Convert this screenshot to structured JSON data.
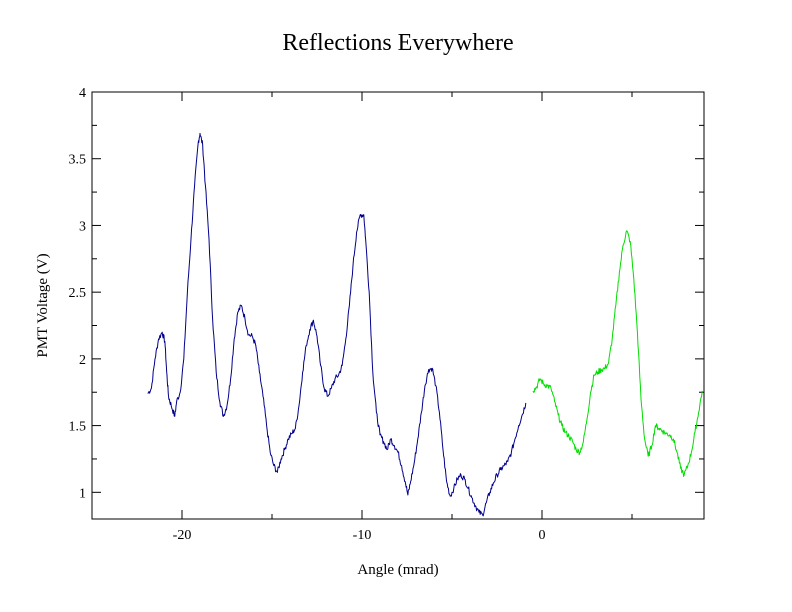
{
  "chart_data": {
    "type": "line",
    "title": "Reflections Everywhere",
    "xlabel": "Angle (mrad)",
    "ylabel": "PMT Voltage (V)",
    "xlim": [
      -25,
      9
    ],
    "ylim": [
      0.8,
      4
    ],
    "grid": false,
    "x_ticks": [
      -20,
      -10,
      0
    ],
    "x_tick_labels": [
      "-20",
      "-10",
      "0"
    ],
    "y_ticks": [
      1,
      1.5,
      2,
      2.5,
      3,
      3.5,
      4
    ],
    "y_tick_labels": [
      "1",
      "1.5",
      "2",
      "2.5",
      "3",
      "3.5",
      "4"
    ],
    "series": [
      {
        "color": "#00008b",
        "points": [
          [
            -21.9,
            1.74
          ],
          [
            -21.7,
            1.78
          ],
          [
            -21.5,
            2.0
          ],
          [
            -21.3,
            2.15
          ],
          [
            -21.1,
            2.2
          ],
          [
            -20.95,
            2.13
          ],
          [
            -20.85,
            1.9
          ],
          [
            -20.75,
            1.72
          ],
          [
            -20.6,
            1.65
          ],
          [
            -20.4,
            1.57
          ],
          [
            -20.3,
            1.68
          ],
          [
            -20.1,
            1.75
          ],
          [
            -19.9,
            2.0
          ],
          [
            -19.7,
            2.5
          ],
          [
            -19.5,
            2.9
          ],
          [
            -19.3,
            3.3
          ],
          [
            -19.1,
            3.62
          ],
          [
            -19.0,
            3.69
          ],
          [
            -18.85,
            3.6
          ],
          [
            -18.7,
            3.3
          ],
          [
            -18.5,
            2.9
          ],
          [
            -18.3,
            2.3
          ],
          [
            -18.1,
            1.9
          ],
          [
            -17.9,
            1.68
          ],
          [
            -17.7,
            1.57
          ],
          [
            -17.5,
            1.65
          ],
          [
            -17.3,
            1.85
          ],
          [
            -17.1,
            2.15
          ],
          [
            -16.9,
            2.35
          ],
          [
            -16.7,
            2.4
          ],
          [
            -16.5,
            2.3
          ],
          [
            -16.3,
            2.18
          ],
          [
            -16.1,
            2.17
          ],
          [
            -15.9,
            2.1
          ],
          [
            -15.7,
            1.9
          ],
          [
            -15.5,
            1.72
          ],
          [
            -15.3,
            1.5
          ],
          [
            -15.1,
            1.3
          ],
          [
            -14.9,
            1.2
          ],
          [
            -14.7,
            1.15
          ],
          [
            -14.5,
            1.25
          ],
          [
            -14.3,
            1.32
          ],
          [
            -14.1,
            1.4
          ],
          [
            -13.9,
            1.44
          ],
          [
            -13.7,
            1.48
          ],
          [
            -13.5,
            1.65
          ],
          [
            -13.3,
            1.9
          ],
          [
            -13.1,
            2.1
          ],
          [
            -12.9,
            2.22
          ],
          [
            -12.7,
            2.29
          ],
          [
            -12.5,
            2.17
          ],
          [
            -12.3,
            1.95
          ],
          [
            -12.1,
            1.78
          ],
          [
            -11.9,
            1.72
          ],
          [
            -11.7,
            1.78
          ],
          [
            -11.5,
            1.85
          ],
          [
            -11.3,
            1.88
          ],
          [
            -11.1,
            1.95
          ],
          [
            -10.9,
            2.15
          ],
          [
            -10.7,
            2.4
          ],
          [
            -10.5,
            2.7
          ],
          [
            -10.3,
            2.95
          ],
          [
            -10.1,
            3.08
          ],
          [
            -9.9,
            3.08
          ],
          [
            -9.8,
            2.9
          ],
          [
            -9.6,
            2.5
          ],
          [
            -9.4,
            1.9
          ],
          [
            -9.2,
            1.6
          ],
          [
            -9.0,
            1.43
          ],
          [
            -8.8,
            1.38
          ],
          [
            -8.6,
            1.32
          ],
          [
            -8.4,
            1.4
          ],
          [
            -8.2,
            1.35
          ],
          [
            -8.0,
            1.3
          ],
          [
            -7.8,
            1.2
          ],
          [
            -7.6,
            1.08
          ],
          [
            -7.45,
            0.98
          ],
          [
            -7.3,
            1.08
          ],
          [
            -7.1,
            1.22
          ],
          [
            -6.9,
            1.4
          ],
          [
            -6.7,
            1.6
          ],
          [
            -6.5,
            1.8
          ],
          [
            -6.3,
            1.92
          ],
          [
            -6.1,
            1.93
          ],
          [
            -5.9,
            1.8
          ],
          [
            -5.7,
            1.6
          ],
          [
            -5.5,
            1.32
          ],
          [
            -5.3,
            1.08
          ],
          [
            -5.1,
            0.97
          ],
          [
            -4.9,
            1.03
          ],
          [
            -4.7,
            1.1
          ],
          [
            -4.5,
            1.13
          ],
          [
            -4.3,
            1.1
          ],
          [
            -4.1,
            1.03
          ],
          [
            -3.9,
            0.96
          ],
          [
            -3.7,
            0.9
          ],
          [
            -3.5,
            0.85
          ],
          [
            -3.3,
            0.83
          ],
          [
            -3.1,
            0.92
          ],
          [
            -2.9,
            1.0
          ],
          [
            -2.7,
            1.07
          ],
          [
            -2.5,
            1.13
          ],
          [
            -2.3,
            1.17
          ],
          [
            -2.1,
            1.2
          ],
          [
            -1.9,
            1.23
          ],
          [
            -1.7,
            1.3
          ],
          [
            -1.5,
            1.4
          ],
          [
            -1.3,
            1.5
          ],
          [
            -1.1,
            1.58
          ],
          [
            -0.9,
            1.67
          ]
        ]
      },
      {
        "color": "#00dd00",
        "points": [
          [
            -0.5,
            1.76
          ],
          [
            -0.3,
            1.79
          ],
          [
            -0.1,
            1.85
          ],
          [
            0.1,
            1.81
          ],
          [
            0.3,
            1.8
          ],
          [
            0.5,
            1.78
          ],
          [
            0.7,
            1.68
          ],
          [
            0.9,
            1.58
          ],
          [
            1.1,
            1.5
          ],
          [
            1.3,
            1.45
          ],
          [
            1.5,
            1.42
          ],
          [
            1.7,
            1.38
          ],
          [
            1.9,
            1.32
          ],
          [
            2.1,
            1.3
          ],
          [
            2.3,
            1.38
          ],
          [
            2.5,
            1.55
          ],
          [
            2.7,
            1.75
          ],
          [
            2.9,
            1.88
          ],
          [
            3.1,
            1.9
          ],
          [
            3.3,
            1.92
          ],
          [
            3.5,
            1.93
          ],
          [
            3.7,
            1.97
          ],
          [
            3.9,
            2.15
          ],
          [
            4.1,
            2.4
          ],
          [
            4.3,
            2.65
          ],
          [
            4.5,
            2.85
          ],
          [
            4.7,
            2.96
          ],
          [
            4.9,
            2.88
          ],
          [
            5.1,
            2.6
          ],
          [
            5.3,
            2.2
          ],
          [
            5.5,
            1.7
          ],
          [
            5.7,
            1.4
          ],
          [
            5.9,
            1.27
          ],
          [
            6.1,
            1.35
          ],
          [
            6.3,
            1.5
          ],
          [
            6.5,
            1.48
          ],
          [
            6.7,
            1.46
          ],
          [
            6.9,
            1.44
          ],
          [
            7.1,
            1.43
          ],
          [
            7.3,
            1.4
          ],
          [
            7.5,
            1.3
          ],
          [
            7.7,
            1.18
          ],
          [
            7.9,
            1.13
          ],
          [
            8.1,
            1.2
          ],
          [
            8.3,
            1.3
          ],
          [
            8.5,
            1.45
          ],
          [
            8.7,
            1.6
          ],
          [
            8.9,
            1.76
          ]
        ]
      }
    ]
  }
}
